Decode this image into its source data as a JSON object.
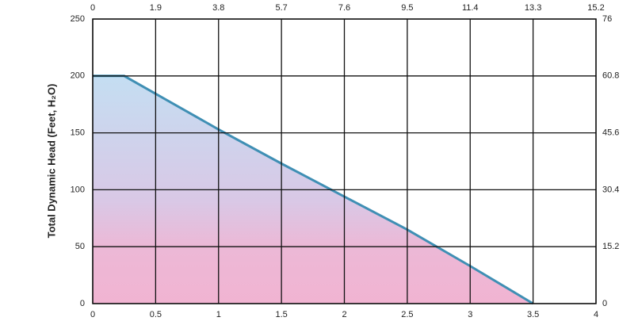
{
  "chart_data": {
    "type": "area",
    "y_label": "Total Dynamic Head (Feet, H₂O)",
    "x": [
      0,
      0.25,
      1,
      1.5,
      2,
      2.5,
      3,
      3.5
    ],
    "series": [
      {
        "color": "#3f8fb4",
        "values": [
          200,
          200,
          153,
          123,
          94,
          65,
          33,
          0
        ]
      }
    ],
    "xlim": [
      0,
      4
    ],
    "xticks": [
      0,
      0.5,
      1,
      1.5,
      2,
      2.5,
      3,
      3.5,
      4
    ],
    "x2lim": [
      0,
      15.2
    ],
    "x2ticks": [
      0,
      1.9,
      3.8,
      5.7,
      7.6,
      9.5,
      11.4,
      13.3,
      15.2
    ],
    "ylim": [
      0,
      250
    ],
    "yticks": [
      0,
      50,
      100,
      150,
      200,
      250
    ],
    "y2lim": [
      0,
      76
    ],
    "y2ticks": [
      0,
      15.2,
      30.4,
      45.6,
      60.8,
      76
    ],
    "grid": true
  }
}
